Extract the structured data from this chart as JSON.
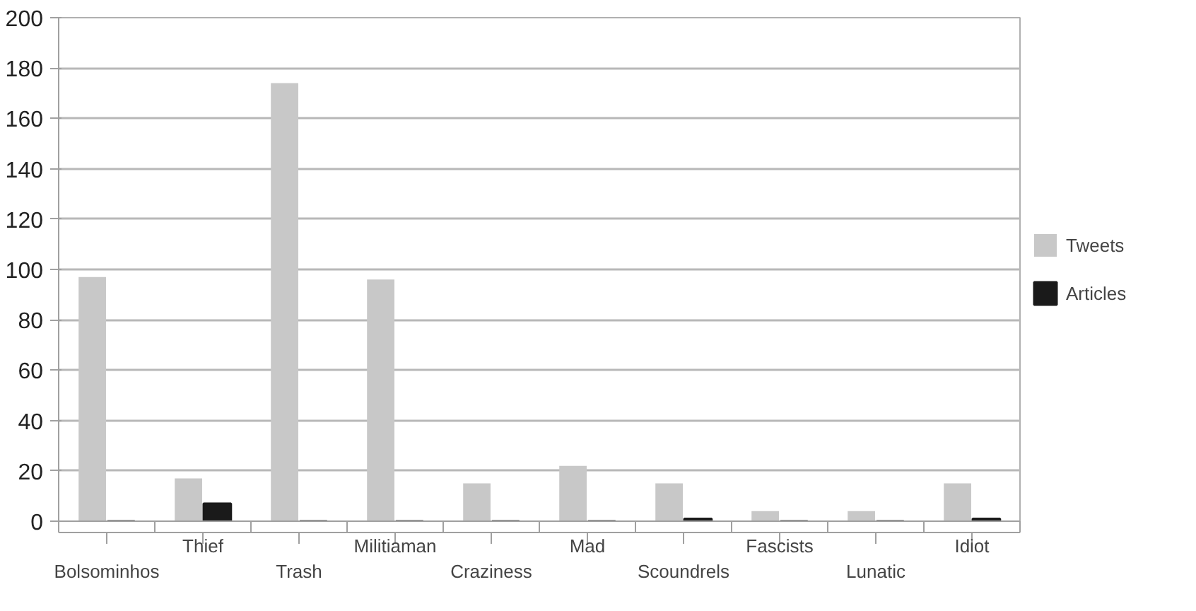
{
  "chart_data": {
    "type": "bar",
    "categories": [
      "Bolsominhos",
      "Thief",
      "Trash",
      "Militiaman",
      "Craziness",
      "Mad",
      "Scoundrels",
      "Fascists",
      "Lunatic",
      "Idiot"
    ],
    "series": [
      {
        "name": "Tweets",
        "color": "#c8c8c8",
        "values": [
          97,
          17,
          174,
          96,
          15,
          22,
          15,
          4,
          4,
          15
        ]
      },
      {
        "name": "Articles",
        "color": "#1a1a1a",
        "values": [
          0,
          7,
          0,
          0,
          0,
          0,
          1,
          0,
          0,
          1
        ]
      }
    ],
    "ylim": [
      0,
      200
    ],
    "yticks": [
      0,
      20,
      40,
      60,
      80,
      100,
      120,
      140,
      160,
      180,
      200
    ],
    "grid": "y",
    "legend": "right"
  }
}
